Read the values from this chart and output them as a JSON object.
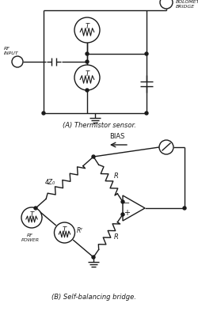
{
  "fig_width": 2.51,
  "fig_height": 3.93,
  "dpi": 100,
  "bg_color": "#ffffff",
  "line_color": "#1a1a1a",
  "title_a": "(A) Thermistor sensor.",
  "title_b": "(B) Self-balancing bridge.",
  "label_rf_input": "RF\nINPUT",
  "label_bolometer": "TO\nBOLOMETER\nBRIDGE",
  "label_bias": "BIAS",
  "label_rf_power": "RF\nPOWER",
  "label_4z0": "4Z₀",
  "label_rt": "Rᵀ",
  "label_r1": "R",
  "label_r2": "R"
}
